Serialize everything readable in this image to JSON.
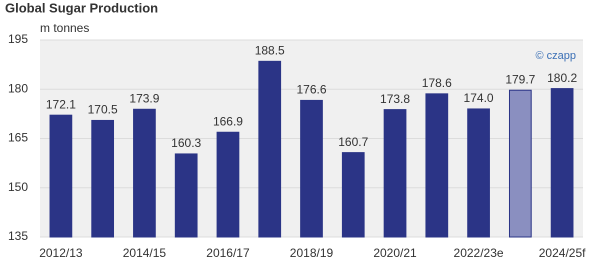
{
  "chart_data": {
    "type": "bar",
    "title": "Global Sugar Production",
    "y_label": "m tonnes",
    "annotation": "© czapp",
    "categories": [
      "2012/13",
      null,
      "2014/15",
      null,
      "2016/17",
      null,
      "2018/19",
      null,
      "2020/21",
      null,
      "2022/23e",
      null,
      "2024/25f"
    ],
    "values": [
      172.1,
      170.5,
      173.9,
      160.3,
      166.9,
      188.5,
      176.6,
      160.7,
      173.8,
      178.6,
      174.0,
      179.7,
      180.2
    ],
    "value_labels": [
      "172.1",
      "170.5",
      "173.9",
      "160.3",
      "166.9",
      "188.5",
      "176.6",
      "160.7",
      "173.8",
      "178.6",
      "174.0",
      "179.7",
      "180.2"
    ],
    "colors": [
      "#2b3486",
      "#2b3486",
      "#2b3486",
      "#2b3486",
      "#2b3486",
      "#2b3486",
      "#2b3486",
      "#2b3486",
      "#2b3486",
      "#2b3486",
      "#2b3486",
      "#8a8fc0",
      "#2b3486"
    ],
    "ylim": [
      135,
      195
    ],
    "yticks": [
      135,
      150,
      165,
      180,
      195
    ],
    "grid": true
  }
}
